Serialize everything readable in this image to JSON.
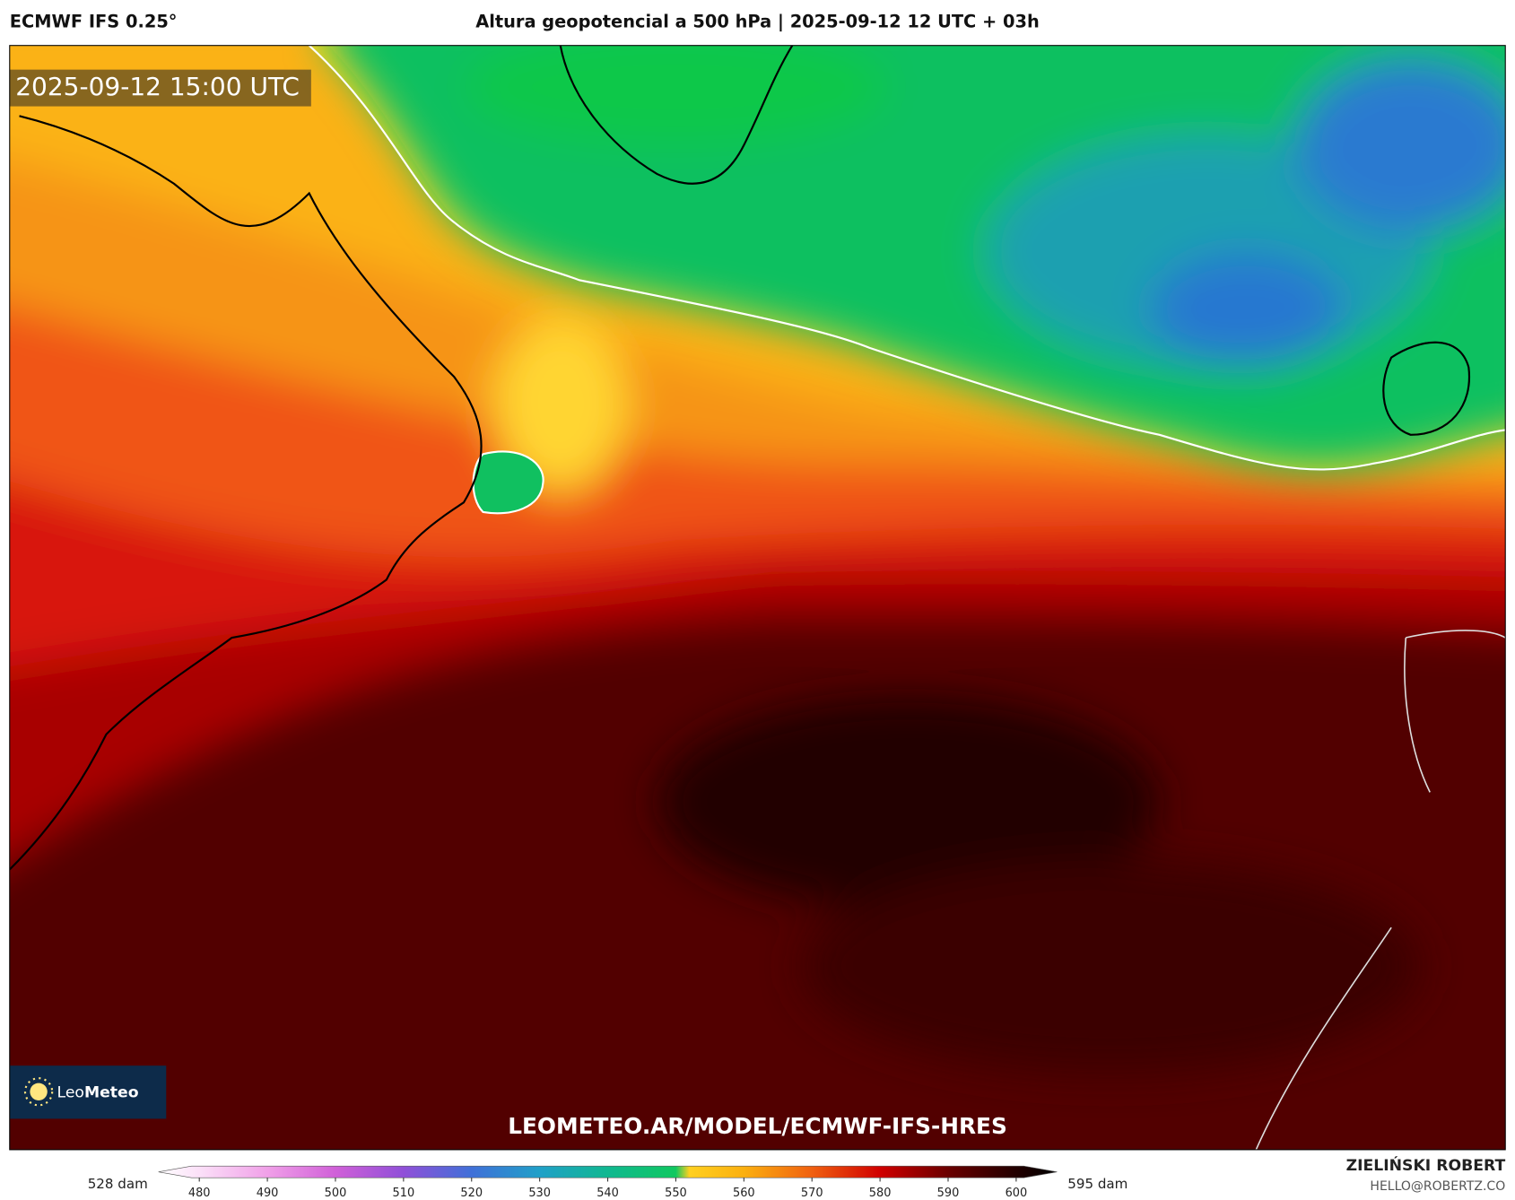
{
  "header": {
    "model": "ECMWF IFS 0.25°",
    "title": "Altura geopotencial a 500 hPa | 2025-09-12 12 UTC + 03h"
  },
  "map": {
    "valid_time": "2025-09-12 15:00 UTC",
    "url": "LEOMETEO.AR/MODEL/ECMWF-IFS-HRES",
    "logo": {
      "leo": "Leo",
      "meteo": "Meteo"
    }
  },
  "colorbar": {
    "min_label": "528 dam",
    "max_label": "595 dam",
    "range": [
      474,
      606
    ],
    "ticks": [
      480,
      490,
      500,
      510,
      520,
      530,
      540,
      550,
      560,
      570,
      580,
      590,
      600
    ],
    "stops": [
      {
        "value": 474,
        "color": "#ffffff"
      },
      {
        "value": 480,
        "color": "#fbe0f8"
      },
      {
        "value": 490,
        "color": "#f0a0e8"
      },
      {
        "value": 500,
        "color": "#d060d8"
      },
      {
        "value": 510,
        "color": "#9050d8"
      },
      {
        "value": 520,
        "color": "#4070d8"
      },
      {
        "value": 530,
        "color": "#20a0c8"
      },
      {
        "value": 540,
        "color": "#10b890"
      },
      {
        "value": 550,
        "color": "#10c860"
      },
      {
        "value": 552,
        "color": "#ffd020"
      },
      {
        "value": 560,
        "color": "#fbb010"
      },
      {
        "value": 570,
        "color": "#f06010"
      },
      {
        "value": 580,
        "color": "#d00000"
      },
      {
        "value": 590,
        "color": "#6a0000"
      },
      {
        "value": 600,
        "color": "#220000"
      },
      {
        "value": 606,
        "color": "#000000"
      }
    ]
  },
  "credit": {
    "author": "ZIELIŃSKI ROBERT",
    "email": "HELLO@ROBERTZ.CO"
  }
}
